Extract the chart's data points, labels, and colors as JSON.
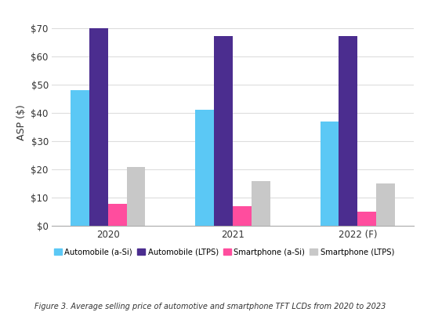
{
  "categories": [
    "2020",
    "2021",
    "2022 (F)"
  ],
  "series": {
    "Automobile (a-Si)": [
      48,
      41,
      37
    ],
    "Automobile (LTPS)": [
      70,
      67,
      67
    ],
    "Smartphone (a-Si)": [
      8,
      7,
      5
    ],
    "Smartphone (LTPS)": [
      21,
      16,
      15
    ]
  },
  "colors": {
    "Automobile (a-Si)": "#5BC8F5",
    "Automobile (LTPS)": "#4B2D8F",
    "Smartphone (a-Si)": "#FF4D9E",
    "Smartphone (LTPS)": "#C8C8C8"
  },
  "ylabel": "ASP ($)",
  "ylim": [
    0,
    73
  ],
  "yticks": [
    0,
    10,
    20,
    30,
    40,
    50,
    60,
    70
  ],
  "ytick_labels": [
    "$0",
    "$10",
    "$20",
    "$30",
    "$40",
    "$50",
    "$60",
    "$70"
  ],
  "caption": "Figure 3. Average selling price of automotive and smartphone TFT LCDs from 2020 to 2023",
  "background_color": "#FFFFFF",
  "grid_color": "#DDDDDD",
  "bar_width": 0.15,
  "figsize": [
    5.5,
    4.12
  ],
  "dpi": 100
}
